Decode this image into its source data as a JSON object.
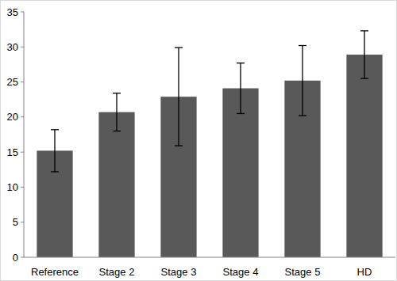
{
  "chart_data": {
    "type": "bar",
    "categories": [
      "Reference",
      "Stage 2",
      "Stage 3",
      "Stage 4",
      "Stage 5",
      "HD"
    ],
    "values": [
      15.2,
      20.7,
      22.9,
      24.1,
      25.2,
      28.9
    ],
    "errors": [
      3.0,
      2.7,
      7.0,
      3.6,
      5.0,
      3.4
    ],
    "color": "#595959",
    "ylim": [
      0,
      35
    ],
    "yticks": [
      0,
      5,
      10,
      15,
      20,
      25,
      30,
      35
    ],
    "grid": false
  }
}
